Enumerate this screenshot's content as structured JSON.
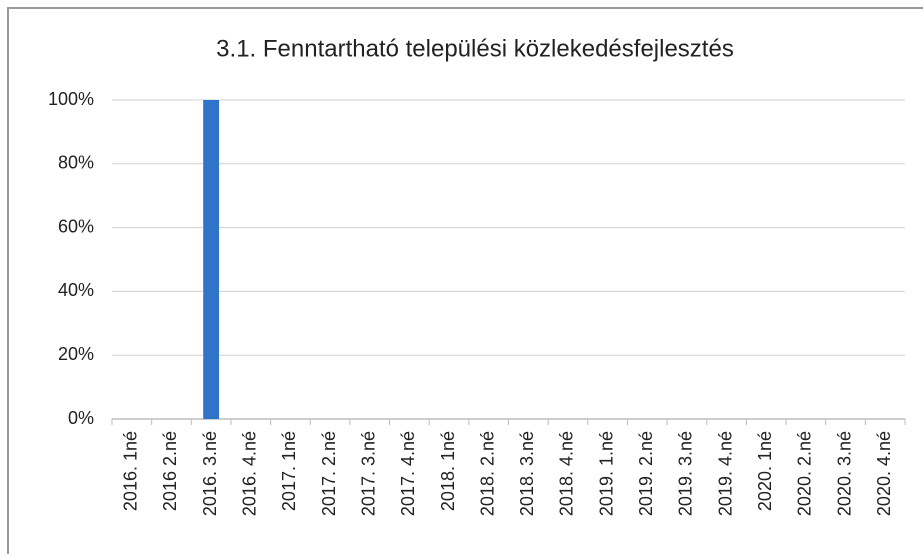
{
  "chart_data": {
    "type": "bar",
    "title": "3.1. Fenntartható települési közlekedésfejlesztés",
    "categories": [
      "2016. 1né",
      "2016 2.né",
      "2016. 3.né",
      "2016. 4.né",
      "2017. 1né",
      "2017. 2.né",
      "2017. 3.né",
      "2017. 4.né",
      "2018. 1né",
      "2018. 2.né",
      "2018. 3.né",
      "2018. 4.né",
      "2019. 1.né",
      "2019. 2.né",
      "2019. 3.né",
      "2019. 4.né",
      "2020. 1né",
      "2020. 2.né",
      "2020. 3.né",
      "2020. 4.né"
    ],
    "values": [
      0,
      0,
      100,
      0,
      0,
      0,
      0,
      0,
      0,
      0,
      0,
      0,
      0,
      0,
      0,
      0,
      0,
      0,
      0,
      0
    ],
    "color": "#2f74c8",
    "ylim": [
      0,
      100
    ],
    "yticks": [
      {
        "value": 0,
        "label": "0%"
      },
      {
        "value": 20,
        "label": "20%"
      },
      {
        "value": 40,
        "label": "40%"
      },
      {
        "value": 60,
        "label": "60%"
      },
      {
        "value": 80,
        "label": "80%"
      },
      {
        "value": 100,
        "label": "100%"
      }
    ],
    "grid": true
  }
}
